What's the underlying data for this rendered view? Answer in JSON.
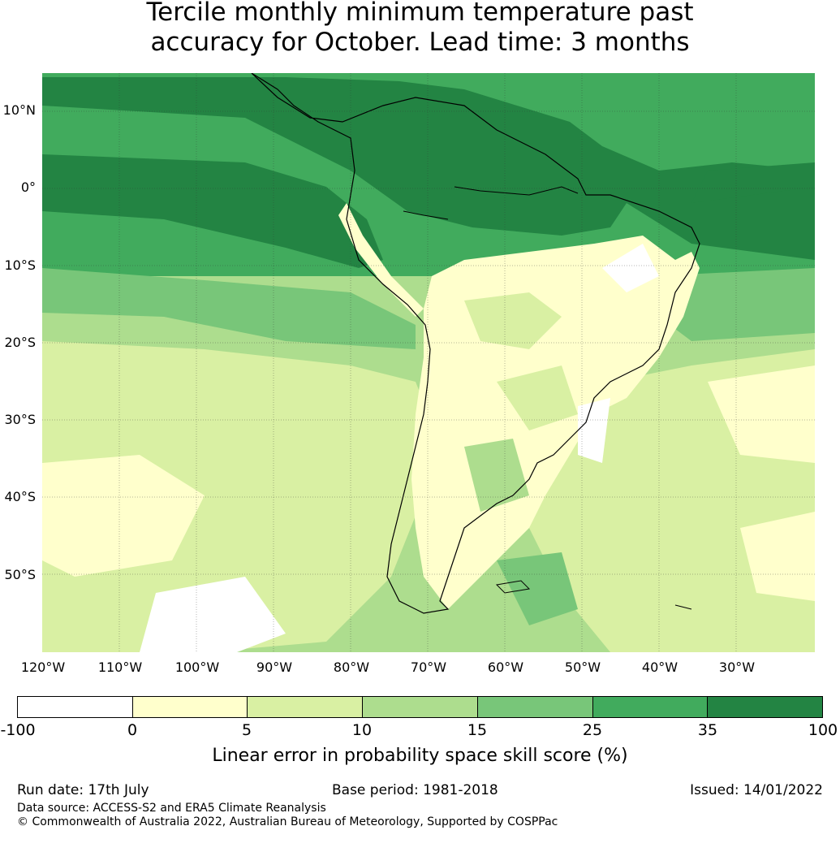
{
  "title_lines": [
    "Tercile monthly minimum temperature past",
    "accuracy for October. Lead time: 3 months"
  ],
  "map": {
    "lat_labels": [
      "10°N",
      "0°",
      "10°S",
      "20°S",
      "30°S",
      "40°S",
      "50°S"
    ],
    "lon_labels": [
      "120°W",
      "110°W",
      "100°W",
      "90°W",
      "80°W",
      "70°W",
      "60°W",
      "50°W",
      "40°W",
      "30°W"
    ]
  },
  "colorbar": {
    "ticks": [
      "-100",
      "0",
      "5",
      "10",
      "15",
      "25",
      "35",
      "100"
    ],
    "colors": [
      "#ffffff",
      "#ffffcc",
      "#d9f0a3",
      "#addd8e",
      "#78c679",
      "#41ab5d",
      "#238443"
    ],
    "label": "Linear error in probability space skill score (%)"
  },
  "footer": {
    "run_date": "Run date: 17th July",
    "base_period": "Base period: 1981-2018",
    "issued": "Issued: 14/01/2022",
    "data_source": "Data source: ACCESS-S2 and ERA5 Climate Reanalysis",
    "copyright": "© Commonwealth of Australia 2022, Australian Bureau of Meteorology, Supported by COSPPac"
  }
}
